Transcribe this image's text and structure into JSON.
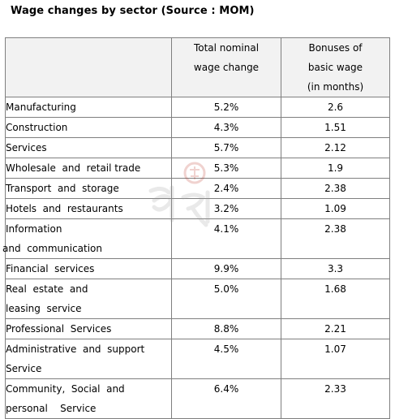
{
  "title": "Wage changes by sector  (Source : MOM)",
  "columns": {
    "col2_line1": "Total nominal",
    "col2_line2": "wage change",
    "col3_line1": "Bonuses of",
    "col3_line2": "basic wage",
    "col3_line3": "(in months)"
  },
  "rows": [
    {
      "sector": "Manufacturing",
      "wage_change": "5.2%",
      "bonus": "2.6"
    },
    {
      "sector": "Construction",
      "wage_change": "4.3%",
      "bonus": "1.51"
    },
    {
      "sector": "Services",
      "wage_change": "5.7%",
      "bonus": "2.12"
    },
    {
      "sector": "Wholesale  and  retail trade",
      "wage_change": "5.3%",
      "bonus": "1.9"
    },
    {
      "sector": "Transport  and  storage",
      "wage_change": "2.4%",
      "bonus": "2.38"
    },
    {
      "sector": "Hotels  and  restaurants",
      "wage_change": "3.2%",
      "bonus": "1.09"
    },
    {
      "sector_line1": "Information",
      "sector_line2": "and  communication",
      "wage_change": "4.1%",
      "bonus": "2.38"
    },
    {
      "sector": "Financial  services",
      "wage_change": "9.9%",
      "bonus": "3.3"
    },
    {
      "sector_line1": "Real  estate  and",
      "sector_line2": "leasing  service",
      "wage_change": "5.0%",
      "bonus": "1.68"
    },
    {
      "sector": "Professional  Services",
      "wage_change": "8.8%",
      "bonus": "2.21"
    },
    {
      "sector_line1": "Administrative  and  support",
      "sector_line2": "Service",
      "wage_change": "4.5%",
      "bonus": "1.07"
    },
    {
      "sector_line1": "Community,  Social  and",
      "sector_line2": "personal    Service",
      "wage_change": "6.4%",
      "bonus": "2.33"
    }
  ],
  "watermark": {
    "icon": "seal-watermark-icon",
    "color": "#c0392b"
  }
}
